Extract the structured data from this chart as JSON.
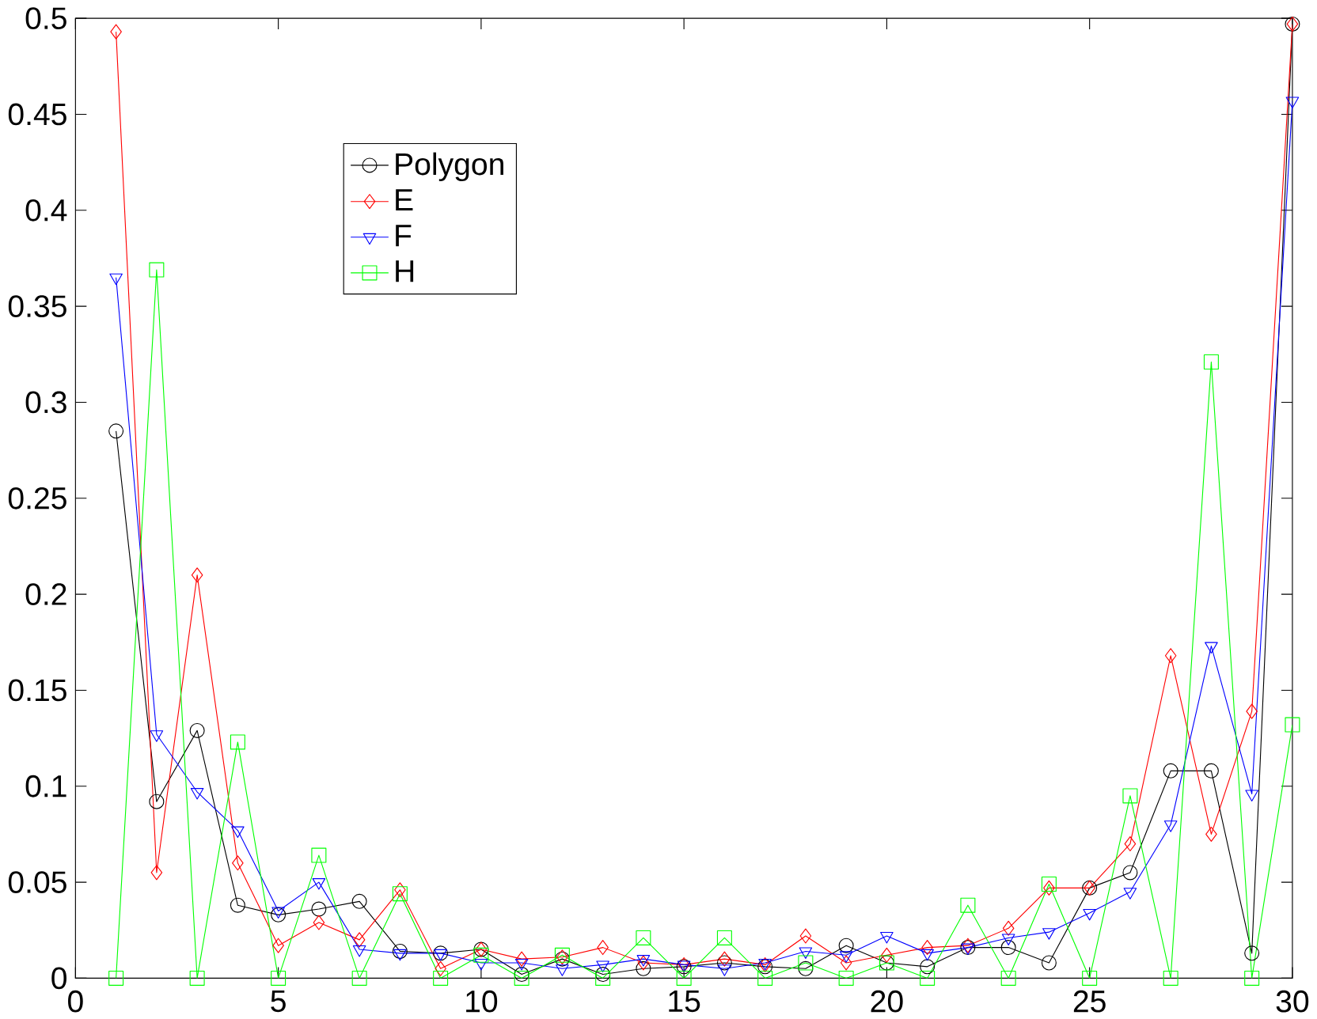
{
  "chart_data": {
    "type": "line",
    "x": [
      1,
      2,
      3,
      4,
      5,
      6,
      7,
      8,
      9,
      10,
      11,
      12,
      13,
      14,
      15,
      16,
      17,
      18,
      19,
      20,
      21,
      22,
      23,
      24,
      25,
      26,
      27,
      28,
      29,
      30
    ],
    "series": [
      {
        "name": "Polygon",
        "color": "#000000",
        "marker": "circle",
        "values": [
          0.285,
          0.092,
          0.129,
          0.038,
          0.033,
          0.036,
          0.04,
          0.014,
          0.013,
          0.015,
          0.002,
          0.01,
          0.002,
          0.005,
          0.006,
          0.008,
          0.006,
          0.005,
          0.017,
          0.008,
          0.006,
          0.016,
          0.016,
          0.008,
          0.047,
          0.055,
          0.108,
          0.108,
          0.013,
          0.497
        ]
      },
      {
        "name": "E",
        "color": "#ff0000",
        "marker": "diamond",
        "values": [
          0.493,
          0.055,
          0.21,
          0.06,
          0.017,
          0.029,
          0.02,
          0.046,
          0.005,
          0.015,
          0.01,
          0.011,
          0.016,
          0.008,
          0.007,
          0.01,
          0.007,
          0.022,
          0.008,
          0.012,
          0.016,
          0.017,
          0.026,
          0.047,
          0.047,
          0.07,
          0.168,
          0.075,
          0.139,
          0.497
        ]
      },
      {
        "name": "F",
        "color": "#0000ff",
        "marker": "triangle",
        "values": [
          0.365,
          0.127,
          0.097,
          0.077,
          0.035,
          0.05,
          0.015,
          0.013,
          0.013,
          0.008,
          0.008,
          0.005,
          0.007,
          0.01,
          0.007,
          0.005,
          0.008,
          0.014,
          0.012,
          0.022,
          0.013,
          0.016,
          0.021,
          0.024,
          0.034,
          0.045,
          0.08,
          0.173,
          0.096,
          0.457
        ]
      },
      {
        "name": "H",
        "color": "#00ff00",
        "marker": "square",
        "values": [
          0,
          0.369,
          0,
          0.123,
          0,
          0.064,
          0,
          0.044,
          0,
          0.012,
          0,
          0.012,
          0,
          0.021,
          0,
          0.021,
          0,
          0.008,
          0,
          0.008,
          0,
          0.038,
          0,
          0.049,
          0,
          0.095,
          0,
          0.321,
          0,
          0.132
        ]
      }
    ],
    "xlim": [
      0,
      30
    ],
    "ylim": [
      0,
      0.5
    ],
    "xticks": [
      0,
      5,
      10,
      15,
      20,
      25,
      30
    ],
    "yticks": [
      0,
      0.05,
      0.1,
      0.15,
      0.2,
      0.25,
      0.3,
      0.35,
      0.4,
      0.45,
      0.5
    ],
    "legend": "top left",
    "grid": false,
    "line_style": "solid"
  }
}
